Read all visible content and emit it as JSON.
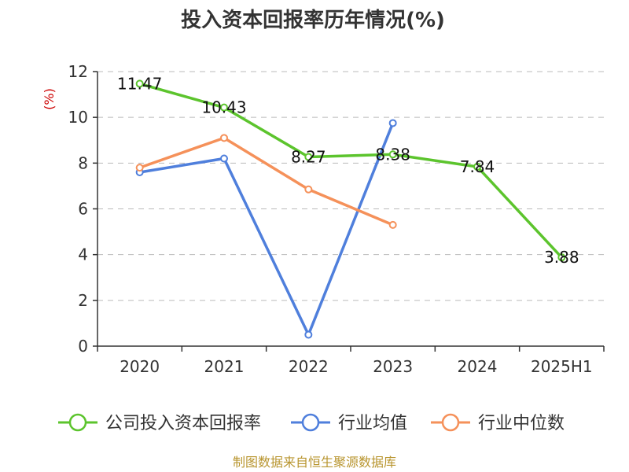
{
  "chart_data": {
    "type": "line",
    "title": "投入资本回报率历年情况(%)",
    "ylabel": "(%)",
    "xlabel": "",
    "categories": [
      "2020",
      "2021",
      "2022",
      "2023",
      "2024",
      "2025H1"
    ],
    "ylim": [
      0,
      12
    ],
    "yticks": [
      0,
      2,
      4,
      6,
      8,
      10,
      12
    ],
    "grid": true,
    "legend_position": "bottom",
    "series": [
      {
        "name": "公司投入资本回报率",
        "color": "#5cc42d",
        "values": [
          11.47,
          10.43,
          8.27,
          8.38,
          7.84,
          3.88
        ],
        "labels": [
          "11.47",
          "10.43",
          "8.27",
          "8.38",
          "7.84",
          "3.88"
        ]
      },
      {
        "name": "行业均值",
        "color": "#4f7fdc",
        "values": [
          7.6,
          8.2,
          0.5,
          9.75,
          null,
          null
        ]
      },
      {
        "name": "行业中位数",
        "color": "#f5915a",
        "values": [
          7.8,
          9.1,
          6.85,
          5.3,
          null,
          null
        ]
      }
    ]
  },
  "footer": "制图数据来自恒生聚源数据库"
}
